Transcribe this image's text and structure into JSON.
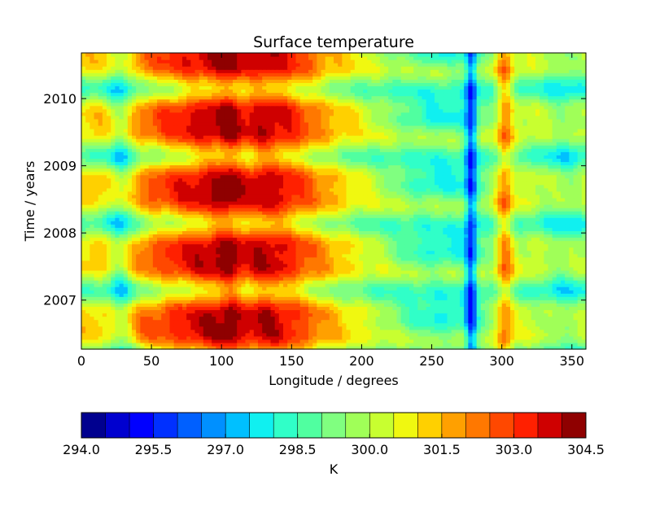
{
  "chart_data": {
    "type": "heatmap",
    "title": "Surface temperature",
    "xlabel": "Longitude / degrees",
    "ylabel": "Time / years",
    "xlim": [
      0,
      360
    ],
    "ylim": [
      2006.27,
      2010.68
    ],
    "x_ticks": [
      "0",
      "50",
      "100",
      "150",
      "200",
      "250",
      "300",
      "350"
    ],
    "x_tick_values": [
      0,
      50,
      100,
      150,
      200,
      250,
      300,
      350
    ],
    "y_ticks": [
      "2007",
      "2008",
      "2009",
      "2010"
    ],
    "y_tick_values": [
      2007,
      2008,
      2009,
      2010
    ],
    "grid": false,
    "colorbar": {
      "label": "K",
      "orientation": "horizontal",
      "placement": "bottom",
      "min": 294.0,
      "max": 304.5,
      "step": 0.5,
      "tick_values": [
        294.0,
        295.5,
        297.0,
        298.5,
        300.0,
        301.5,
        303.0,
        304.5
      ],
      "tick_labels": [
        "294.0",
        "295.5",
        "297.0",
        "298.5",
        "300.0",
        "301.5",
        "303.0",
        "304.5"
      ],
      "colors": [
        "#00008f",
        "#0000cf",
        "#0000ff",
        "#0030ff",
        "#0060ff",
        "#0090ff",
        "#00c0ff",
        "#10f0f0",
        "#30ffc8",
        "#50ffa0",
        "#80ff80",
        "#a0ff58",
        "#c8ff30",
        "#f0f810",
        "#ffd000",
        "#ffa000",
        "#ff7800",
        "#ff4800",
        "#ff2000",
        "#cf0000",
        "#8f0000"
      ]
    }
  }
}
